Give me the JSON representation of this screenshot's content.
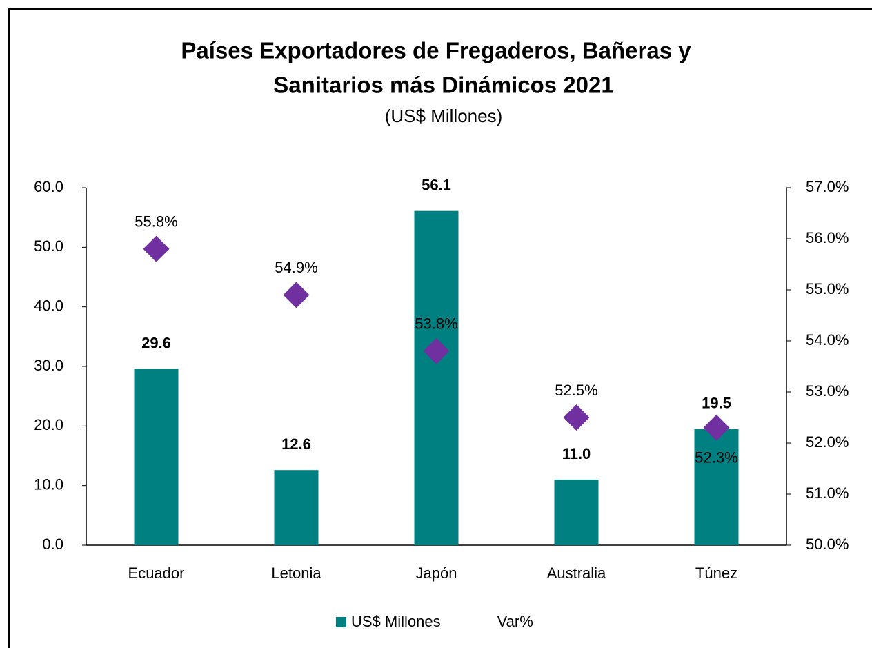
{
  "chart_data": {
    "type": "bar",
    "title": [
      "Países Exportadores de Fregaderos, Bañeras y",
      "Sanitarios más Dinámicos 2021"
    ],
    "subtitle": "(US$ Millones)",
    "categories": [
      "Ecuador",
      "Letonia",
      "Japón",
      "Australia",
      "Túnez"
    ],
    "series": [
      {
        "name": "US$ Millones",
        "type": "bar",
        "color": "#008080",
        "values": [
          29.6,
          12.6,
          56.1,
          11.0,
          19.5
        ],
        "value_labels": [
          "29.6",
          "12.6",
          "56.1",
          "11.0",
          "19.5"
        ]
      },
      {
        "name": "Var%",
        "type": "scatter",
        "axis": "y2",
        "color": "#7030a0",
        "values": [
          55.8,
          54.9,
          53.8,
          52.5,
          52.3
        ],
        "value_labels": [
          "55.8%",
          "54.9%",
          "53.8%",
          "52.5%",
          "52.3%"
        ]
      }
    ],
    "ylim": [
      0,
      60
    ],
    "yticks": [
      {
        "value": 0,
        "label": "0.0"
      },
      {
        "value": 10,
        "label": "10.0"
      },
      {
        "value": 20,
        "label": "20.0"
      },
      {
        "value": 30,
        "label": "30.0"
      },
      {
        "value": 40,
        "label": "40.0"
      },
      {
        "value": 50,
        "label": "50.0"
      },
      {
        "value": 60,
        "label": "60.0"
      }
    ],
    "y2lim": [
      50,
      57
    ],
    "y2ticks": [
      {
        "value": 50,
        "label": "50.0%"
      },
      {
        "value": 51,
        "label": "51.0%"
      },
      {
        "value": 52,
        "label": "52.0%"
      },
      {
        "value": 53,
        "label": "53.0%"
      },
      {
        "value": 54,
        "label": "54.0%"
      },
      {
        "value": 55,
        "label": "55.0%"
      },
      {
        "value": 56,
        "label": "56.0%"
      },
      {
        "value": 57,
        "label": "57.0%"
      }
    ],
    "grid": false,
    "legend": "bottom"
  }
}
